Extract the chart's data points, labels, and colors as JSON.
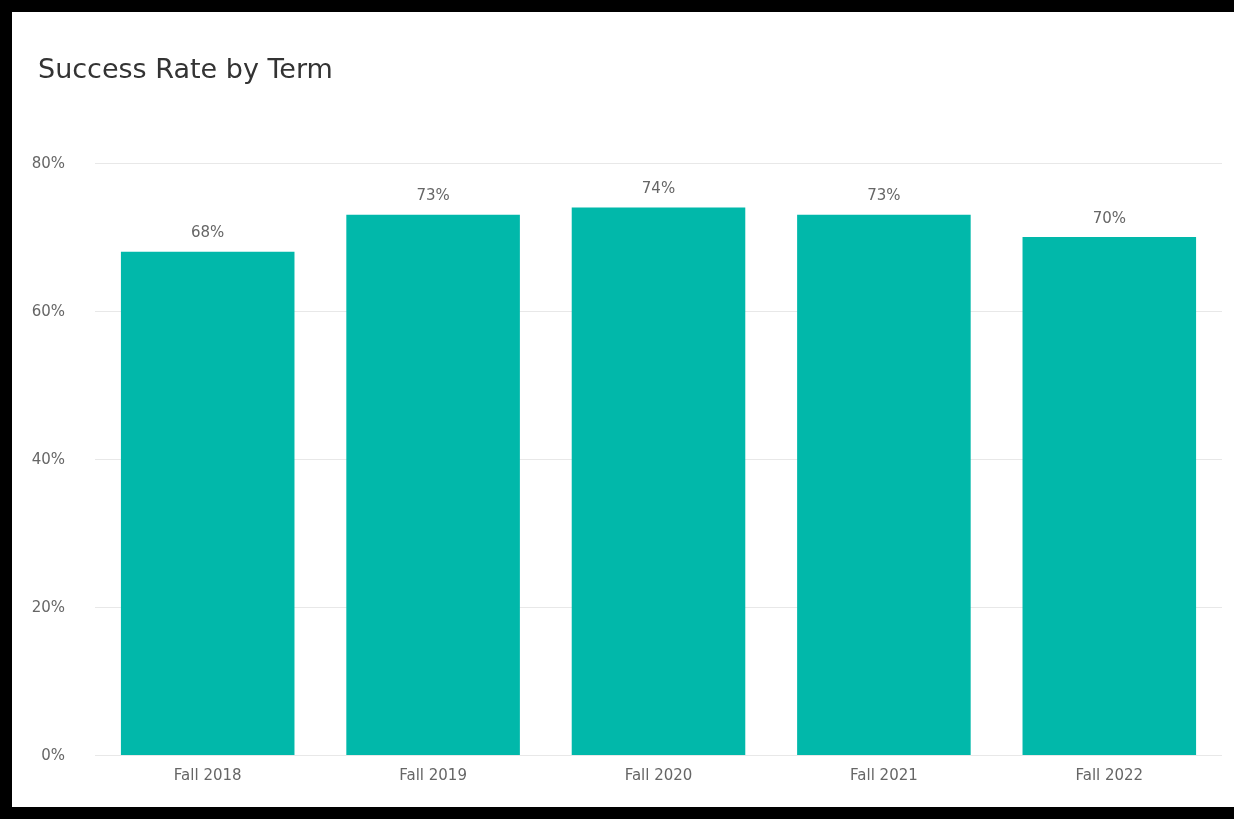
{
  "chart_data": {
    "type": "bar",
    "title": "Success Rate by Term",
    "categories": [
      "Fall 2018",
      "Fall 2019",
      "Fall 2020",
      "Fall 2021",
      "Fall 2022"
    ],
    "values": [
      68,
      73,
      74,
      73,
      70
    ],
    "value_labels": [
      "68%",
      "73%",
      "74%",
      "73%",
      "70%"
    ],
    "color": "#01b8aa",
    "ylim": [
      0,
      80
    ],
    "yticks": [
      {
        "value": 0,
        "label": "0%"
      },
      {
        "value": 20,
        "label": "20%"
      },
      {
        "value": 40,
        "label": "40%"
      },
      {
        "value": 60,
        "label": "60%"
      },
      {
        "value": 80,
        "label": "80%"
      }
    ],
    "grid": "y"
  }
}
